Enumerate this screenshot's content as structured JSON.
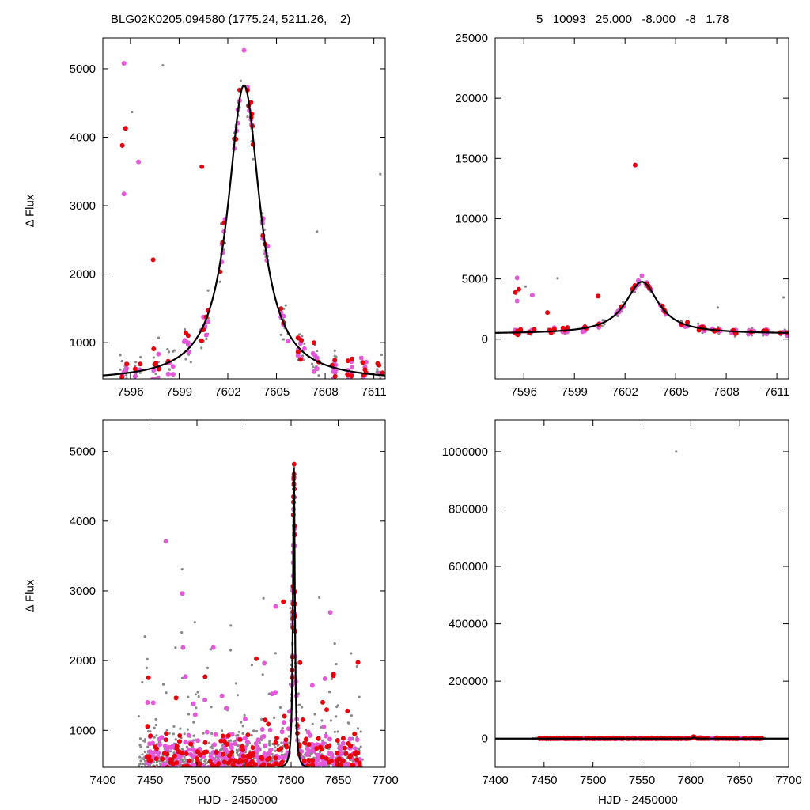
{
  "header": {
    "left_title": "BLG02K0205.094580 (1775.24, 5211.26,    2)",
    "right_title": "5   10093   25.000   -8.000   -8   1.78"
  },
  "colors": {
    "survey": "#888888",
    "red": "#e8000b",
    "magenta": "#e35ad8",
    "model": "#000000"
  },
  "chart_data": [
    {
      "type": "scatter",
      "panel": "top-left",
      "ylabel": "Δ Flux",
      "xlim": [
        7594.3,
        7611.7
      ],
      "ylim": [
        470,
        5450
      ],
      "xticks": [
        7596,
        7599,
        7602,
        7605,
        7608,
        7611
      ],
      "yticks": [
        1000,
        2000,
        3000,
        4000,
        5000
      ],
      "model": {
        "t0": 7603.0,
        "peak": 4320,
        "baseline": 440,
        "tau": 1.2
      }
    },
    {
      "type": "scatter",
      "panel": "top-right",
      "xlim": [
        7594.3,
        7611.7
      ],
      "ylim": [
        -3300,
        25000
      ],
      "xticks": [
        7596,
        7599,
        7602,
        7605,
        7608,
        7611
      ],
      "yticks": [
        0,
        5000,
        10000,
        15000,
        20000,
        25000
      ],
      "model": {
        "t0": 7603.0,
        "peak": 4320,
        "baseline": 440,
        "tau": 1.2
      },
      "outliers": [
        {
          "x": 7602.6,
          "y": 14450
        }
      ]
    },
    {
      "type": "scatter",
      "panel": "bottom-left",
      "ylabel": "Δ Flux",
      "xlabel": "HJD - 2450000",
      "xlim": [
        7400,
        7700
      ],
      "ylim": [
        470,
        5450
      ],
      "xticks": [
        7400,
        7450,
        7500,
        7550,
        7600,
        7650,
        7700
      ],
      "yticks": [
        1000,
        2000,
        3000,
        4000,
        5000
      ],
      "model": {
        "t0": 7603.0,
        "peak": 4320,
        "baseline": 440,
        "tau": 1.2
      }
    },
    {
      "type": "scatter",
      "panel": "bottom-right",
      "xlabel": "HJD - 2450000",
      "xlim": [
        7400,
        7700
      ],
      "ylim": [
        -100000,
        1110000
      ],
      "xticks": [
        7400,
        7450,
        7500,
        7550,
        7600,
        7650,
        7700
      ],
      "yticks": [
        0,
        200000,
        400000,
        600000,
        800000,
        1000000
      ],
      "model": {
        "t0": 7603.0,
        "peak": 4320,
        "baseline": 440,
        "tau": 1.2
      },
      "outliers": [
        {
          "x": 7585,
          "y": 1000000
        }
      ]
    }
  ]
}
